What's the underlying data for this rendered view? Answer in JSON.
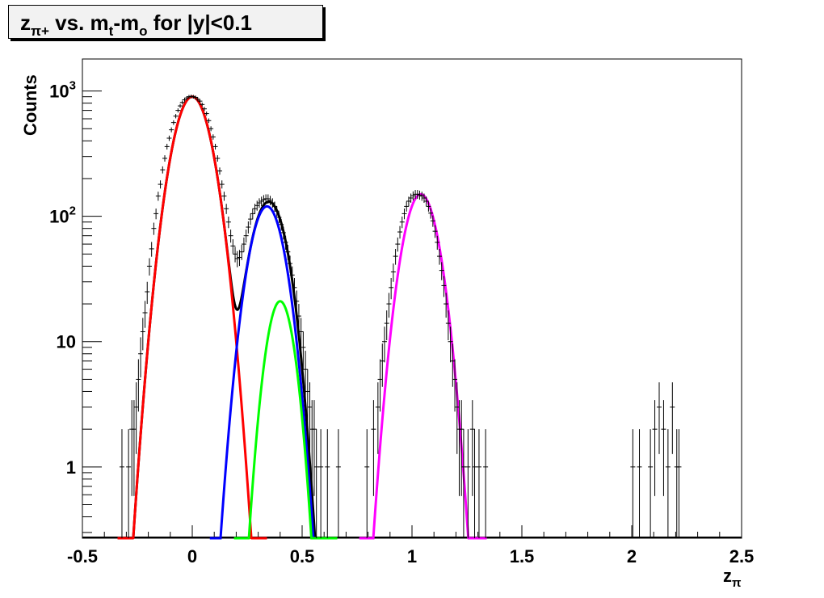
{
  "chart_data": {
    "type": "line",
    "title_parts": {
      "z": "z",
      "z_sub": "π+",
      "vs": " vs. m",
      "m1_sub": "t",
      "dash": "-m",
      "m2_sub": "o",
      "rest": " for |y|<0.1"
    },
    "xlabel": "z",
    "xlabel_sub": "π",
    "ylabel": "Counts",
    "xlim": [
      -0.5,
      2.5
    ],
    "ylim": [
      0.27,
      1800
    ],
    "yscale": "log",
    "x_ticks": [
      {
        "value": -0.5,
        "label": "-0.5"
      },
      {
        "value": 0,
        "label": "0"
      },
      {
        "value": 0.5,
        "label": "0.5"
      },
      {
        "value": 1,
        "label": "1"
      },
      {
        "value": 1.5,
        "label": "1.5"
      },
      {
        "value": 2,
        "label": "2"
      },
      {
        "value": 2.5,
        "label": "2.5"
      }
    ],
    "y_ticks": [
      {
        "value": 1000,
        "base": "10",
        "exp": "3"
      },
      {
        "value": 100,
        "base": "10",
        "exp": "2"
      },
      {
        "value": 10,
        "base": "10",
        "exp": ""
      },
      {
        "value": 1,
        "base": "1",
        "exp": ""
      }
    ],
    "colors": {
      "total": "#000000",
      "pion": "#ff0000",
      "second": "#0000ff",
      "third": "#00ff00",
      "fourth": "#ff00ff"
    },
    "gaussians": [
      {
        "key": "pion",
        "amplitude": 900,
        "mean": 0.0,
        "sigma": 0.0667,
        "range": [
          -0.34,
          0.34
        ]
      },
      {
        "key": "second",
        "amplitude": 120,
        "mean": 0.34,
        "sigma": 0.0605,
        "range": [
          0.08,
          0.62
        ]
      },
      {
        "key": "third",
        "amplitude": 21,
        "mean": 0.4,
        "sigma": 0.0482,
        "range": [
          0.19,
          0.66
        ]
      },
      {
        "key": "fourth",
        "amplitude": 150,
        "mean": 1.04,
        "sigma": 0.0608,
        "range": [
          0.76,
          1.34
        ]
      }
    ],
    "total_fit": {
      "components": [
        "pion",
        "second",
        "third"
      ],
      "range": [
        -0.3,
        0.6
      ]
    },
    "points": [
      {
        "x": -0.32,
        "y": 1
      },
      {
        "x": -0.29,
        "y": 1
      },
      {
        "x": -0.275,
        "y": 2
      },
      {
        "x": -0.265,
        "y": 2
      },
      {
        "x": -0.255,
        "y": 3
      },
      {
        "x": -0.245,
        "y": 5
      },
      {
        "x": -0.235,
        "y": 8
      },
      {
        "x": -0.225,
        "y": 12
      },
      {
        "x": -0.215,
        "y": 17
      },
      {
        "x": -0.205,
        "y": 25
      },
      {
        "x": -0.195,
        "y": 40
      },
      {
        "x": -0.185,
        "y": 55
      },
      {
        "x": -0.175,
        "y": 80
      },
      {
        "x": -0.165,
        "y": 105
      },
      {
        "x": -0.155,
        "y": 145
      },
      {
        "x": -0.145,
        "y": 180
      },
      {
        "x": -0.135,
        "y": 235
      },
      {
        "x": -0.125,
        "y": 290
      },
      {
        "x": -0.115,
        "y": 360
      },
      {
        "x": -0.105,
        "y": 420
      },
      {
        "x": -0.095,
        "y": 490
      },
      {
        "x": -0.085,
        "y": 560
      },
      {
        "x": -0.075,
        "y": 630
      },
      {
        "x": -0.065,
        "y": 700
      },
      {
        "x": -0.055,
        "y": 760
      },
      {
        "x": -0.045,
        "y": 810
      },
      {
        "x": -0.035,
        "y": 850
      },
      {
        "x": -0.025,
        "y": 880
      },
      {
        "x": -0.015,
        "y": 900
      },
      {
        "x": -0.005,
        "y": 905
      },
      {
        "x": 0.005,
        "y": 900
      },
      {
        "x": 0.015,
        "y": 890
      },
      {
        "x": 0.025,
        "y": 860
      },
      {
        "x": 0.035,
        "y": 830
      },
      {
        "x": 0.045,
        "y": 780
      },
      {
        "x": 0.055,
        "y": 720
      },
      {
        "x": 0.065,
        "y": 660
      },
      {
        "x": 0.075,
        "y": 580
      },
      {
        "x": 0.085,
        "y": 500
      },
      {
        "x": 0.095,
        "y": 430
      },
      {
        "x": 0.105,
        "y": 360
      },
      {
        "x": 0.115,
        "y": 290
      },
      {
        "x": 0.125,
        "y": 230
      },
      {
        "x": 0.135,
        "y": 180
      },
      {
        "x": 0.145,
        "y": 145
      },
      {
        "x": 0.155,
        "y": 115
      },
      {
        "x": 0.165,
        "y": 90
      },
      {
        "x": 0.175,
        "y": 70
      },
      {
        "x": 0.185,
        "y": 58
      },
      {
        "x": 0.195,
        "y": 50
      },
      {
        "x": 0.205,
        "y": 46
      },
      {
        "x": 0.215,
        "y": 47
      },
      {
        "x": 0.225,
        "y": 52
      },
      {
        "x": 0.235,
        "y": 60
      },
      {
        "x": 0.245,
        "y": 70
      },
      {
        "x": 0.255,
        "y": 82
      },
      {
        "x": 0.265,
        "y": 95
      },
      {
        "x": 0.275,
        "y": 105
      },
      {
        "x": 0.285,
        "y": 115
      },
      {
        "x": 0.295,
        "y": 122
      },
      {
        "x": 0.305,
        "y": 128
      },
      {
        "x": 0.315,
        "y": 132
      },
      {
        "x": 0.325,
        "y": 136
      },
      {
        "x": 0.335,
        "y": 138
      },
      {
        "x": 0.345,
        "y": 138
      },
      {
        "x": 0.355,
        "y": 134
      },
      {
        "x": 0.365,
        "y": 128
      },
      {
        "x": 0.375,
        "y": 120
      },
      {
        "x": 0.385,
        "y": 110
      },
      {
        "x": 0.395,
        "y": 98
      },
      {
        "x": 0.405,
        "y": 86
      },
      {
        "x": 0.415,
        "y": 74
      },
      {
        "x": 0.425,
        "y": 62
      },
      {
        "x": 0.435,
        "y": 52
      },
      {
        "x": 0.445,
        "y": 42
      },
      {
        "x": 0.455,
        "y": 34
      },
      {
        "x": 0.465,
        "y": 27
      },
      {
        "x": 0.475,
        "y": 21
      },
      {
        "x": 0.485,
        "y": 16
      },
      {
        "x": 0.495,
        "y": 12
      },
      {
        "x": 0.505,
        "y": 9
      },
      {
        "x": 0.515,
        "y": 6
      },
      {
        "x": 0.525,
        "y": 4
      },
      {
        "x": 0.535,
        "y": 3
      },
      {
        "x": 0.545,
        "y": 2
      },
      {
        "x": 0.555,
        "y": 2
      },
      {
        "x": 0.565,
        "y": 1
      },
      {
        "x": 0.585,
        "y": 1
      },
      {
        "x": 0.615,
        "y": 1
      },
      {
        "x": 0.665,
        "y": 1
      },
      {
        "x": 0.795,
        "y": 1
      },
      {
        "x": 0.825,
        "y": 2
      },
      {
        "x": 0.845,
        "y": 3
      },
      {
        "x": 0.855,
        "y": 5
      },
      {
        "x": 0.865,
        "y": 7
      },
      {
        "x": 0.875,
        "y": 10
      },
      {
        "x": 0.885,
        "y": 14
      },
      {
        "x": 0.895,
        "y": 20
      },
      {
        "x": 0.905,
        "y": 27
      },
      {
        "x": 0.915,
        "y": 36
      },
      {
        "x": 0.925,
        "y": 48
      },
      {
        "x": 0.935,
        "y": 60
      },
      {
        "x": 0.945,
        "y": 75
      },
      {
        "x": 0.955,
        "y": 90
      },
      {
        "x": 0.965,
        "y": 105
      },
      {
        "x": 0.975,
        "y": 120
      },
      {
        "x": 0.985,
        "y": 132
      },
      {
        "x": 0.995,
        "y": 140
      },
      {
        "x": 1.005,
        "y": 146
      },
      {
        "x": 1.015,
        "y": 150
      },
      {
        "x": 1.025,
        "y": 150
      },
      {
        "x": 1.035,
        "y": 148
      },
      {
        "x": 1.045,
        "y": 145
      },
      {
        "x": 1.055,
        "y": 140
      },
      {
        "x": 1.065,
        "y": 132
      },
      {
        "x": 1.075,
        "y": 120
      },
      {
        "x": 1.085,
        "y": 106
      },
      {
        "x": 1.095,
        "y": 92
      },
      {
        "x": 1.105,
        "y": 76
      },
      {
        "x": 1.115,
        "y": 62
      },
      {
        "x": 1.125,
        "y": 48
      },
      {
        "x": 1.135,
        "y": 37
      },
      {
        "x": 1.145,
        "y": 28
      },
      {
        "x": 1.155,
        "y": 20
      },
      {
        "x": 1.165,
        "y": 14
      },
      {
        "x": 1.175,
        "y": 10
      },
      {
        "x": 1.185,
        "y": 7
      },
      {
        "x": 1.195,
        "y": 5
      },
      {
        "x": 1.205,
        "y": 3
      },
      {
        "x": 1.215,
        "y": 2
      },
      {
        "x": 1.225,
        "y": 2
      },
      {
        "x": 1.235,
        "y": 1
      },
      {
        "x": 1.255,
        "y": 1
      },
      {
        "x": 1.275,
        "y": 2
      },
      {
        "x": 1.285,
        "y": 1
      },
      {
        "x": 1.305,
        "y": 1
      },
      {
        "x": 1.335,
        "y": 1
      },
      {
        "x": 2.005,
        "y": 1
      },
      {
        "x": 2.035,
        "y": 1
      },
      {
        "x": 2.085,
        "y": 1
      },
      {
        "x": 2.105,
        "y": 2
      },
      {
        "x": 2.125,
        "y": 3
      },
      {
        "x": 2.145,
        "y": 2
      },
      {
        "x": 2.165,
        "y": 1
      },
      {
        "x": 2.185,
        "y": 3
      },
      {
        "x": 2.205,
        "y": 1
      },
      {
        "x": 2.215,
        "y": 1
      }
    ]
  }
}
